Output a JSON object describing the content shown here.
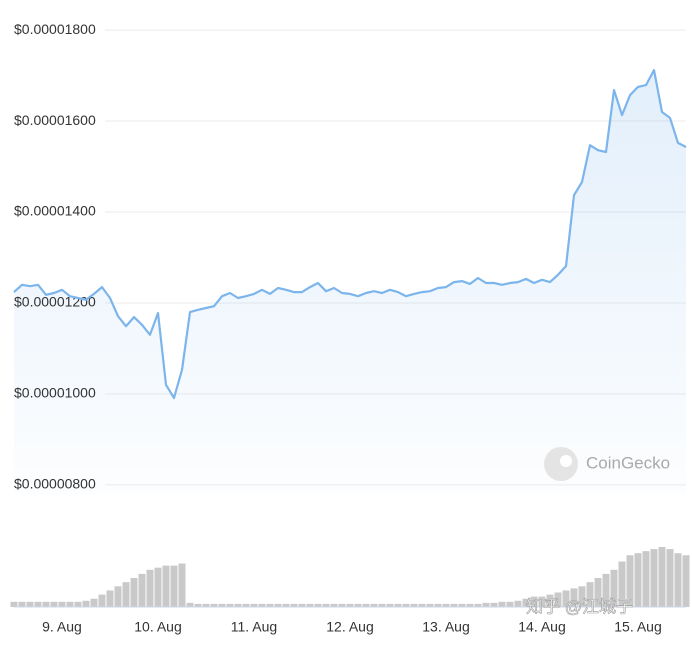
{
  "chart_data": {
    "type": "line",
    "categories": [
      null,
      null,
      null,
      null,
      null,
      null,
      "9. Aug",
      null,
      null,
      null,
      null,
      null,
      null,
      null,
      null,
      null,
      null,
      null,
      "10. Aug",
      null,
      null,
      null,
      null,
      null,
      null,
      null,
      null,
      null,
      null,
      null,
      "11. Aug",
      null,
      null,
      null,
      null,
      null,
      null,
      null,
      null,
      null,
      null,
      null,
      "12. Aug",
      null,
      null,
      null,
      null,
      null,
      null,
      null,
      null,
      null,
      null,
      null,
      "13. Aug",
      null,
      null,
      null,
      null,
      null,
      null,
      null,
      null,
      null,
      null,
      null,
      "14. Aug",
      null,
      null,
      null,
      null,
      null,
      null,
      null,
      null,
      null,
      null,
      null,
      "15. Aug",
      null,
      null,
      null,
      null,
      null,
      null
    ],
    "values": [
      1.224e-05,
      1.24e-05,
      1.237e-05,
      1.24e-05,
      1.218e-05,
      1.222e-05,
      1.229e-05,
      1.215e-05,
      1.211e-05,
      1.207e-05,
      1.22e-05,
      1.235e-05,
      1.211e-05,
      1.171e-05,
      1.149e-05,
      1.169e-05,
      1.152e-05,
      1.13e-05,
      1.178e-05,
      1.02e-05,
      9.91e-06,
      1.053e-05,
      1.18e-05,
      1.185e-05,
      1.189e-05,
      1.193e-05,
      1.215e-05,
      1.222e-05,
      1.211e-05,
      1.215e-05,
      1.22e-05,
      1.229e-05,
      1.22e-05,
      1.233e-05,
      1.229e-05,
      1.224e-05,
      1.224e-05,
      1.235e-05,
      1.244e-05,
      1.226e-05,
      1.233e-05,
      1.222e-05,
      1.22e-05,
      1.215e-05,
      1.222e-05,
      1.226e-05,
      1.222e-05,
      1.229e-05,
      1.224e-05,
      1.215e-05,
      1.22e-05,
      1.224e-05,
      1.226e-05,
      1.233e-05,
      1.235e-05,
      1.246e-05,
      1.248e-05,
      1.242e-05,
      1.255e-05,
      1.244e-05,
      1.244e-05,
      1.24e-05,
      1.244e-05,
      1.246e-05,
      1.253e-05,
      1.244e-05,
      1.251e-05,
      1.246e-05,
      1.262e-05,
      1.281e-05,
      1.437e-05,
      1.466e-05,
      1.547e-05,
      1.536e-05,
      1.532e-05,
      1.668e-05,
      1.613e-05,
      1.657e-05,
      1.675e-05,
      1.679e-05,
      1.712e-05,
      1.62e-05,
      1.607e-05,
      1.552e-05,
      1.543e-05
    ],
    "volume": [
      5,
      5,
      5,
      5,
      5,
      5,
      5,
      5,
      5,
      6,
      8,
      12,
      16,
      20,
      24,
      28,
      32,
      36,
      38,
      40,
      40,
      42,
      4,
      3,
      3,
      3,
      3,
      3,
      3,
      3,
      3,
      3,
      3,
      3,
      3,
      3,
      3,
      3,
      3,
      3,
      3,
      3,
      3,
      3,
      3,
      3,
      3,
      3,
      3,
      3,
      3,
      3,
      3,
      3,
      3,
      3,
      3,
      3,
      3,
      4,
      4,
      5,
      5,
      6,
      8,
      10,
      10,
      12,
      14,
      16,
      18,
      20,
      24,
      28,
      32,
      36,
      44,
      50,
      52,
      54,
      56,
      58,
      56,
      52,
      50
    ],
    "color": "#7cb5ec",
    "volume_color": "#c9c9c9",
    "ylim": [
      7.8e-06,
      1.82e-05
    ],
    "yticks": [
      {
        "value": 1.8e-05,
        "label": "$0.00001800"
      },
      {
        "value": 1.6e-05,
        "label": "$0.00001600"
      },
      {
        "value": 1.4e-05,
        "label": "$0.00001400"
      },
      {
        "value": 1.2e-05,
        "label": "$0.00001200"
      },
      {
        "value": 1e-05,
        "label": "$0.00001000"
      },
      {
        "value": 8e-06,
        "label": "$0.00000800"
      }
    ],
    "grid": true,
    "watermark": "CoinGecko",
    "credit": "知乎 @江城子"
  }
}
